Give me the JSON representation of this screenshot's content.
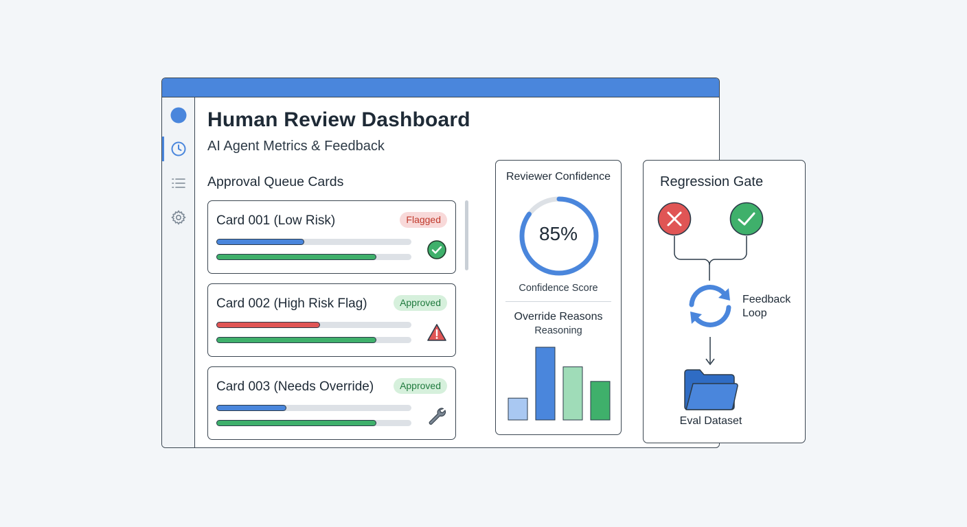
{
  "dashboard": {
    "title": "Human Review Dashboard",
    "subtitle": "AI Agent Metrics & Feedback"
  },
  "sidebar": {
    "items": [
      {
        "icon": "avatar-dot",
        "active": false
      },
      {
        "icon": "clock-icon",
        "active": true
      },
      {
        "icon": "list-icon",
        "active": false
      },
      {
        "icon": "gear-icon",
        "active": false
      }
    ]
  },
  "queue": {
    "title": "Approval Queue Cards",
    "cards": [
      {
        "title": "Card 001 (Low Risk)",
        "badge": "Flagged",
        "bar1": 0.45,
        "bar1_color": "#4a86dc",
        "bar2": 0.82,
        "bar2_color": "#3fb06b",
        "icon": "check-circle-icon"
      },
      {
        "title": "Card 002 (High Risk Flag)",
        "badge": "Approved",
        "bar1": 0.53,
        "bar1_color": "#e05555",
        "bar2": 0.82,
        "bar2_color": "#3fb06b",
        "icon": "warning-icon"
      },
      {
        "title": "Card 003 (Needs Override)",
        "badge": "Approved",
        "bar1": 0.36,
        "bar1_color": "#4a86dc",
        "bar2": 0.82,
        "bar2_color": "#3fb06b",
        "icon": "wrench-icon"
      }
    ]
  },
  "confidence": {
    "title": "Reviewer Confidence",
    "value": 0.85,
    "value_label": "85%",
    "score_label": "Confidence Score",
    "override_title": "Override Reasons",
    "override_sub": "Reasoning"
  },
  "chart_data": {
    "type": "bar",
    "categories": [
      "",
      "",
      "",
      ""
    ],
    "values": [
      30,
      100,
      73,
      53
    ],
    "colors": [
      "#a9c8f2",
      "#4a86dc",
      "#9fdcb8",
      "#3fb06b"
    ],
    "title": "Override Reasons",
    "subtitle": "Reasoning",
    "ylim": [
      0,
      100
    ]
  },
  "gate": {
    "title": "Regression Gate",
    "feedback_line1": "Feedback",
    "feedback_line2": "Loop",
    "dataset_label": "Eval Dataset"
  },
  "colors": {
    "accent": "#4a86dc",
    "success": "#3fb06b",
    "danger": "#e05555"
  }
}
